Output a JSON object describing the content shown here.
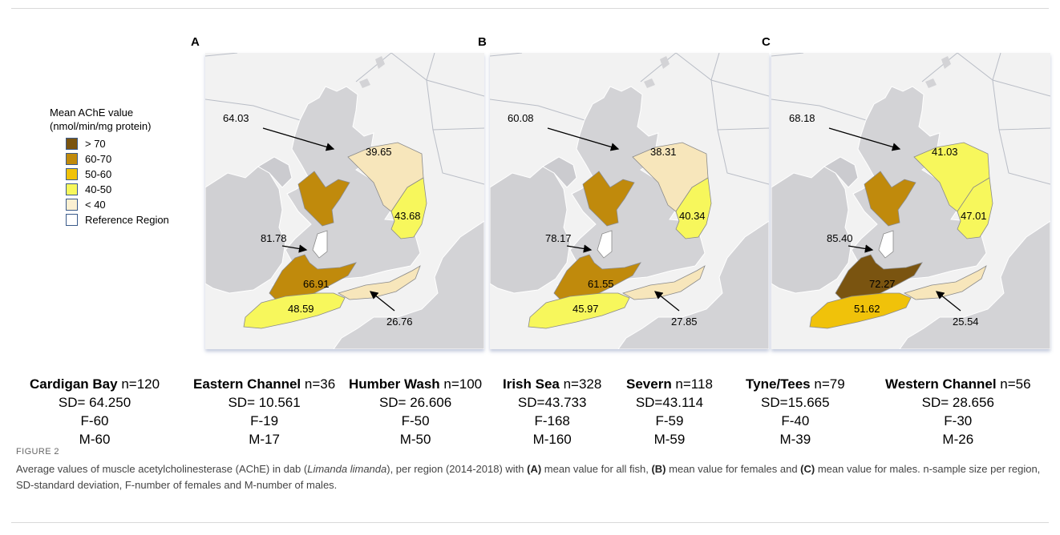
{
  "panels": [
    {
      "letter": "A",
      "values": {
        "tyne_tees": "39.65",
        "humber_wash": "43.68",
        "cardigan_bay": "64.03",
        "irish_sea": "81.78",
        "severn": "66.91",
        "western_channel": "48.59",
        "eastern_channel": "26.76"
      }
    },
    {
      "letter": "B",
      "values": {
        "tyne_tees": "38.31",
        "humber_wash": "40.34",
        "cardigan_bay": "60.08",
        "irish_sea": "78.17",
        "severn": "61.55",
        "western_channel": "45.97",
        "eastern_channel": "27.85"
      }
    },
    {
      "letter": "C",
      "values": {
        "tyne_tees": "41.03",
        "humber_wash": "47.01",
        "cardigan_bay": "68.18",
        "irish_sea": "85.40",
        "severn": "72.27",
        "western_channel": "51.62",
        "eastern_channel": "25.54"
      }
    }
  ],
  "panel_colors": [
    {
      "tyne_tees": "#f7e6bb",
      "humber_wash": "#f7f75c",
      "cardigan_bay": "#c08a0c",
      "irish_sea": "#ffffff",
      "severn": "#c08a0c",
      "western_channel": "#f7f75c",
      "eastern_channel": "#f7e6bb"
    },
    {
      "tyne_tees": "#f7e6bb",
      "humber_wash": "#f7f75c",
      "cardigan_bay": "#c08a0c",
      "irish_sea": "#ffffff",
      "severn": "#c08a0c",
      "western_channel": "#f7f75c",
      "eastern_channel": "#f7e6bb"
    },
    {
      "tyne_tees": "#f7f75c",
      "humber_wash": "#f7f75c",
      "cardigan_bay": "#c08a0c",
      "irish_sea": "#ffffff",
      "severn": "#7a5410",
      "western_channel": "#f0c20a",
      "eastern_channel": "#f7e6bb"
    }
  ],
  "legend": {
    "title_line1": "Mean AChE value",
    "title_line2": "(nmol/min/mg protein)",
    "items": [
      {
        "label": "> 70",
        "color": "#7a5410"
      },
      {
        "label": "60-70",
        "color": "#c08a0c"
      },
      {
        "label": "50-60",
        "color": "#f0c20a"
      },
      {
        "label": "40-50",
        "color": "#f7f75c"
      },
      {
        "label": "< 40",
        "color": "#fbf0d2"
      },
      {
        "label": "Reference Region",
        "color": "#ffffff"
      }
    ]
  },
  "stats": [
    {
      "name": "Cardigan Bay",
      "n": " n=120",
      "sd": "SD= 64.250",
      "f": "F-60",
      "m": "M-60"
    },
    {
      "name": "Eastern Channel",
      "n": " n=36",
      "sd": "SD= 10.561",
      "f": "F-19",
      "m": "M-17"
    },
    {
      "name": "Humber Wash",
      "n": " n=100",
      "sd": "SD= 26.606",
      "f": "F-50",
      "m": "M-50"
    },
    {
      "name": "Irish Sea",
      "n": " n=328",
      "sd": "SD=43.733",
      "f": "F-168",
      "m": "M-160"
    },
    {
      "name": "Severn",
      "n": "  n=118",
      "sd": "SD=43.114",
      "f": "F-59",
      "m": "M-59"
    },
    {
      "name": "Tyne/Tees",
      "n": " n=79",
      "sd": "SD=15.665",
      "f": "F-40",
      "m": "M-39"
    },
    {
      "name": "Western Channel",
      "n": " n=56",
      "sd": "SD= 28.656",
      "f": "F-30",
      "m": "M-26"
    }
  ],
  "caption": {
    "label": "FIGURE 2",
    "t1": "Average values of muscle acetylcholinesterase (AChE) in dab (",
    "species": "Limanda limanda",
    "t2": "), per region (2014-2018) with ",
    "a": "(A)",
    "t3": " mean value for all fish, ",
    "b": "(B)",
    "t4": " mean value for females and ",
    "c": "(C)",
    "t5": " mean value for males. n-sample size per region, SD-standard deviation, F-number of females and M-number of males."
  }
}
